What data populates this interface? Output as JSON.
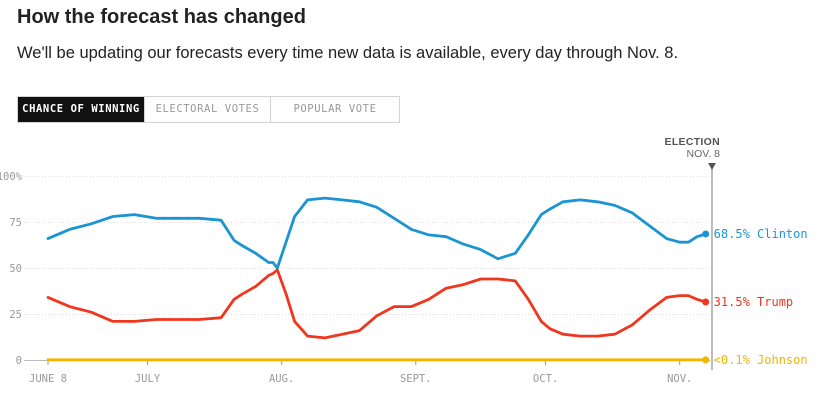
{
  "header": {
    "title": "How the forecast has changed",
    "subtitle": "We'll be updating our forecasts every time new data is available, every day through Nov. 8."
  },
  "tabs": [
    {
      "label": "CHANCE OF WINNING",
      "active": true
    },
    {
      "label": "ELECTORAL VOTES",
      "active": false
    },
    {
      "label": "POPULAR VOTE",
      "active": false
    }
  ],
  "election_marker": {
    "line1": "ELECTION",
    "line2": "NOV. 8"
  },
  "colors": {
    "clinton": "#1a95d2",
    "trump": "#f0361d",
    "johnson": "#f5b400",
    "grid": "#dddddd"
  },
  "chart_data": {
    "type": "line",
    "title": "",
    "xlabel": "",
    "ylabel": "",
    "ylim": [
      0,
      100
    ],
    "yticks": [
      "100%",
      "75",
      "50",
      "25",
      "0"
    ],
    "xticks": [
      "JUNE 8",
      "JULY",
      "AUG.",
      "SEPT.",
      "OCT.",
      "NOV."
    ],
    "x": [
      "Jun 8",
      "Jun 13",
      "Jun 18",
      "Jun 23",
      "Jun 28",
      "Jul 3",
      "Jul 8",
      "Jul 13",
      "Jul 18",
      "Jul 21",
      "Jul 23",
      "Jul 26",
      "Jul 29",
      "Jul 30",
      "Jul 31",
      "Aug 2",
      "Aug 4",
      "Aug 7",
      "Aug 11",
      "Aug 15",
      "Aug 19",
      "Aug 23",
      "Aug 27",
      "Aug 31",
      "Sep 4",
      "Sep 8",
      "Sep 12",
      "Sep 16",
      "Sep 20",
      "Sep 24",
      "Sep 27",
      "Sep 30",
      "Oct 2",
      "Oct 5",
      "Oct 9",
      "Oct 13",
      "Oct 17",
      "Oct 21",
      "Oct 25",
      "Oct 29",
      "Nov 1",
      "Nov 3",
      "Nov 5",
      "Nov 7"
    ],
    "series": [
      {
        "name": "Clinton",
        "end_label": "68.5%",
        "values": [
          66,
          71,
          74,
          78,
          79,
          77,
          77,
          77,
          76,
          65,
          62,
          58,
          53,
          53,
          50,
          64,
          78,
          87,
          88,
          87,
          86,
          83,
          77,
          71,
          68,
          67,
          63,
          60,
          55,
          58,
          68,
          79,
          82,
          86,
          87,
          86,
          84,
          80,
          73,
          66,
          64,
          64,
          67,
          68.5
        ]
      },
      {
        "name": "Trump",
        "end_label": "31.5%",
        "values": [
          34,
          29,
          26,
          21,
          21,
          22,
          22,
          22,
          23,
          33,
          36,
          40,
          46,
          47,
          49,
          36,
          21,
          13,
          12,
          14,
          16,
          24,
          29,
          29,
          33,
          39,
          41,
          44,
          44,
          43,
          33,
          21,
          17,
          14,
          13,
          13,
          14,
          19,
          27,
          34,
          35,
          35,
          33,
          31.5
        ]
      },
      {
        "name": "Johnson",
        "end_label": "<0.1%",
        "values": [
          0.1,
          0.1,
          0.1,
          0.1,
          0.1,
          0.1,
          0.1,
          0.1,
          0.1,
          0.1,
          0.1,
          0.1,
          0.1,
          0.1,
          0.1,
          0.1,
          0.1,
          0.1,
          0.1,
          0.1,
          0.1,
          0.1,
          0.1,
          0.1,
          0.1,
          0.1,
          0.1,
          0.1,
          0.1,
          0.1,
          0.1,
          0.1,
          0.1,
          0.1,
          0.1,
          0.1,
          0.1,
          0.1,
          0.1,
          0.1,
          0.1,
          0.1,
          0.1,
          0.1
        ]
      }
    ]
  }
}
